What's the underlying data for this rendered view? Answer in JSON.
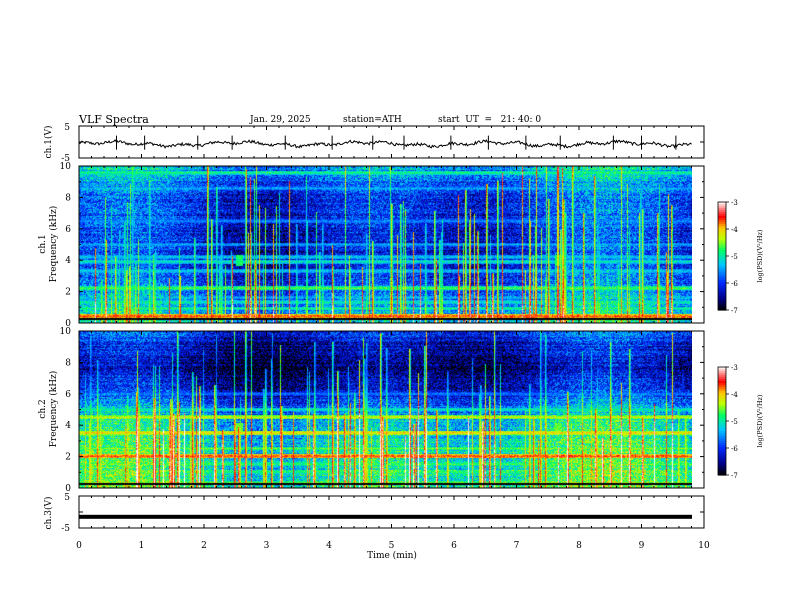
{
  "header": {
    "title": "VLF  Spectra",
    "date": "Jan. 29, 2025",
    "station": "station=ATH",
    "start_ut": "start  UT  =   21: 40: 0"
  },
  "colors": {
    "background": "#ffffff",
    "axes": "#000000",
    "colormap": [
      "#ffffff",
      "#ff0000",
      "#ffff00",
      "#00ff00",
      "#00ffff",
      "#0000ff",
      "#000000"
    ]
  },
  "chart_data": [
    {
      "type": "line",
      "name": "ch1-waveform",
      "ylabel": "ch.1(V)",
      "ylim": [
        -5,
        5
      ],
      "yticks": [
        "5",
        "-5"
      ],
      "xlim": [
        0,
        10
      ],
      "mean_value": -0.6,
      "spike_times_min": [
        0.6,
        1.05,
        1.9,
        2.45,
        3.3,
        4.05,
        4.7,
        5.2,
        5.95,
        6.55,
        7.15,
        7.7,
        8.55,
        9.0,
        9.55
      ]
    },
    {
      "type": "heatmap",
      "name": "ch1-spectrogram",
      "channel": "ch.1",
      "ylabel": "Frequency  (kHz)",
      "ylim": [
        0,
        10
      ],
      "yticks": [
        "0",
        "2",
        "4",
        "6",
        "8",
        "10"
      ],
      "xlim": [
        0,
        9.8
      ],
      "colorbar": {
        "label": "log(PSD)(V²/Hz)",
        "range": [
          -7,
          -3
        ],
        "ticks": [
          "-3",
          "-4",
          "-5",
          "-6",
          "-7"
        ]
      },
      "bands_khz": [
        {
          "f": 0.4,
          "level": -3.6
        },
        {
          "f": 0.9,
          "level": -4.9
        },
        {
          "f": 1.3,
          "level": -5.0
        },
        {
          "f": 1.6,
          "level": -5.4
        },
        {
          "f": 2.2,
          "level": -4.6
        },
        {
          "f": 3.3,
          "level": -5.2
        },
        {
          "f": 3.9,
          "level": -5.0
        },
        {
          "f": 4.2,
          "level": -5.2
        },
        {
          "f": 5.0,
          "level": -5.4
        },
        {
          "f": 6.5,
          "level": -5.5
        },
        {
          "f": 8.6,
          "level": -5.4
        },
        {
          "f": 9.6,
          "level": -4.8
        }
      ],
      "background_level_by_freq": [
        [
          0,
          -5.2
        ],
        [
          2,
          -5.7
        ],
        [
          4,
          -6.1
        ],
        [
          6,
          -6.1
        ],
        [
          8,
          -6.0
        ],
        [
          10,
          -5.4
        ]
      ],
      "spherics_density": 140,
      "events": [
        {
          "t": 2.55,
          "f": 4.0,
          "level": -4.8
        },
        {
          "t": 7.65,
          "f": 4.0,
          "level": -4.8
        }
      ]
    },
    {
      "type": "heatmap",
      "name": "ch2-spectrogram",
      "channel": "ch.2",
      "ylabel": "Frequency  (kHz)",
      "ylim": [
        0,
        10
      ],
      "yticks": [
        "0",
        "2",
        "4",
        "6",
        "8",
        "10"
      ],
      "xlim": [
        0,
        9.8
      ],
      "colorbar": {
        "label": "log(PSD)(V²/Hz)",
        "range": [
          -7,
          -3
        ],
        "ticks": [
          "-3",
          "-4",
          "-5",
          "-6",
          "-7"
        ]
      },
      "bands_khz": [
        {
          "f": 0.3,
          "level": -4.6
        },
        {
          "f": 1.0,
          "level": -4.8
        },
        {
          "f": 1.5,
          "level": -4.7
        },
        {
          "f": 2.0,
          "level": -3.6
        },
        {
          "f": 2.5,
          "level": -4.6
        },
        {
          "f": 3.5,
          "level": -4.0
        },
        {
          "f": 4.5,
          "level": -4.2
        },
        {
          "f": 5.0,
          "level": -5.0
        },
        {
          "f": 6.0,
          "level": -5.6
        }
      ],
      "background_level_by_freq": [
        [
          0,
          -4.9
        ],
        [
          2,
          -5.0
        ],
        [
          4,
          -5.2
        ],
        [
          5,
          -5.6
        ],
        [
          6,
          -6.1
        ],
        [
          7.5,
          -6.6
        ],
        [
          9,
          -6.3
        ],
        [
          10,
          -6.0
        ]
      ],
      "spherics_density": 120,
      "events": [
        {
          "t": 2.55,
          "f": 3.8,
          "level": -4.6
        },
        {
          "t": 7.65,
          "f": 3.8,
          "level": -4.6
        }
      ]
    },
    {
      "type": "line",
      "name": "ch3-waveform",
      "ylabel": "ch.3(V)",
      "ylim": [
        -5,
        5
      ],
      "yticks": [
        "5",
        "-5"
      ],
      "xlim": [
        0,
        10
      ],
      "mean_value": -1.5,
      "xlabel": "Time  (min)",
      "xticks": [
        "0",
        "1",
        "2",
        "3",
        "4",
        "5",
        "6",
        "7",
        "8",
        "9",
        "10"
      ]
    }
  ]
}
